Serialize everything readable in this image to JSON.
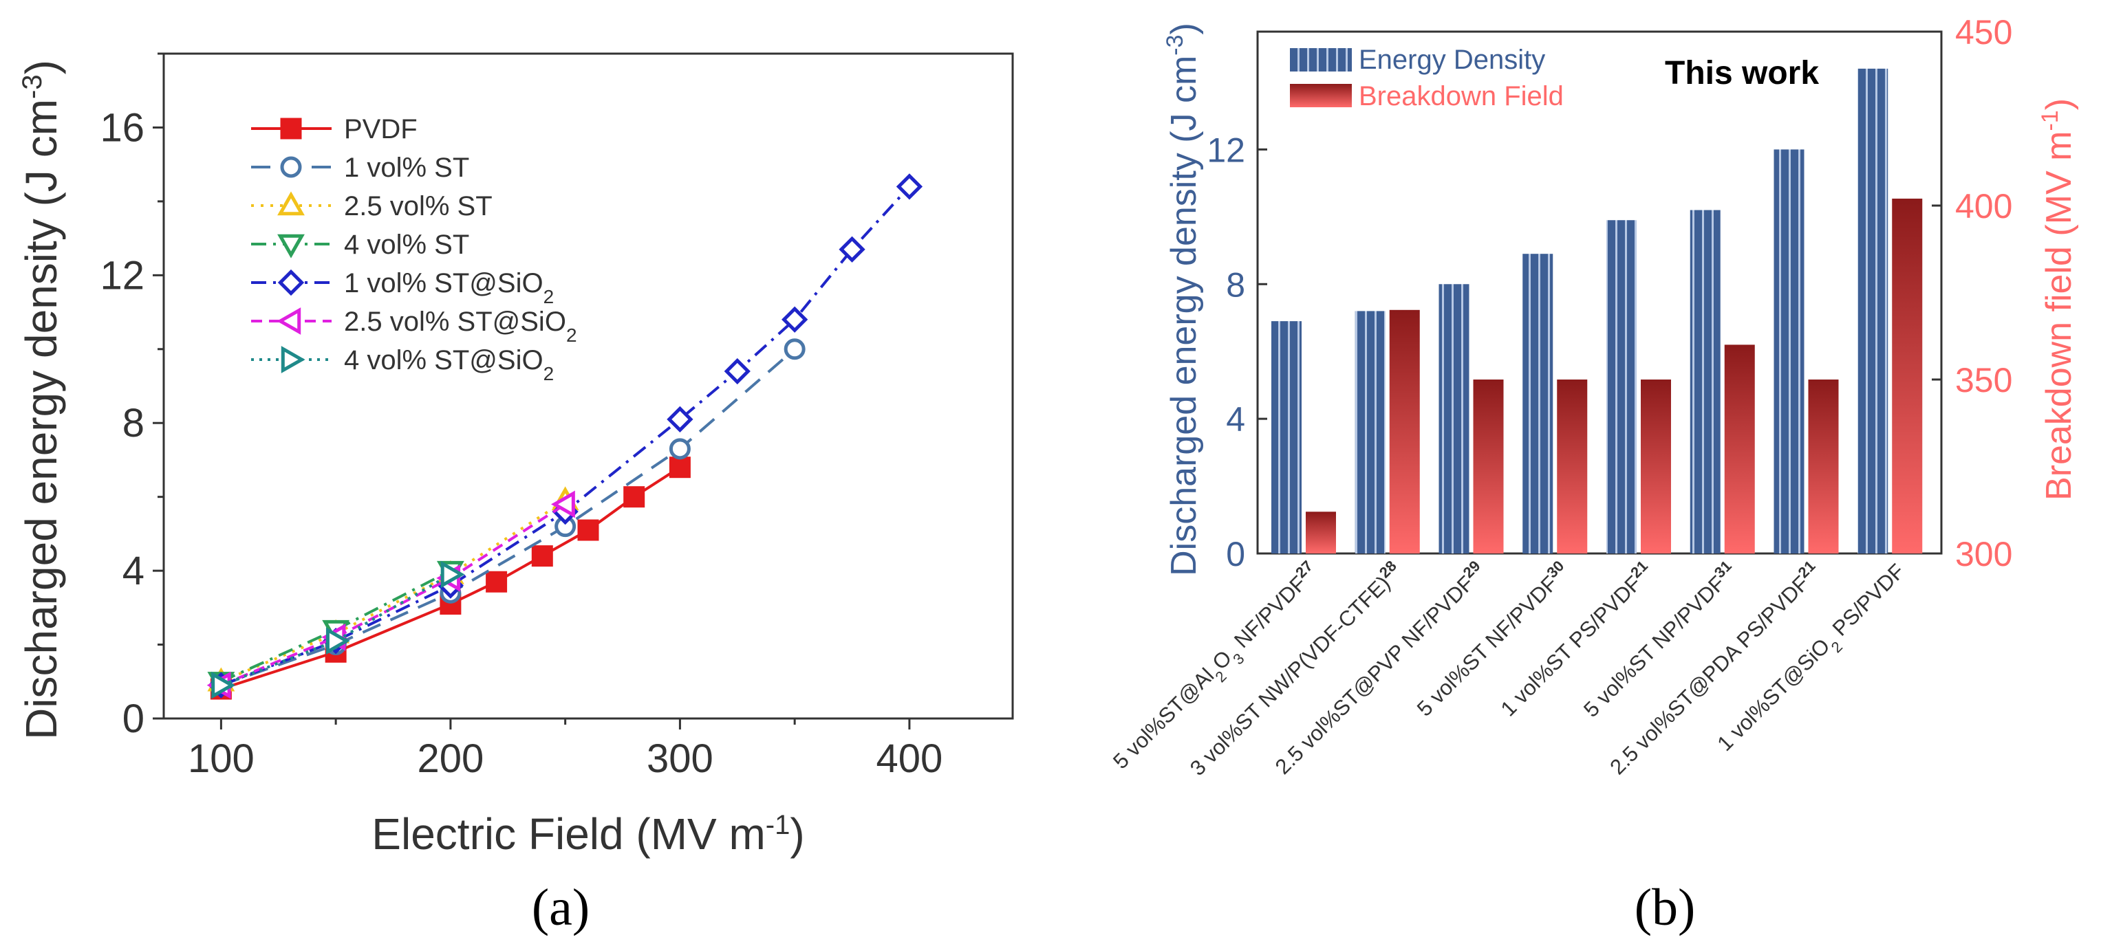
{
  "chart_data": [
    {
      "type": "line",
      "panel_label": "(a)",
      "xlabel": "Electric Field (MV m",
      "xlabel_sup": "-1",
      "xlabel_end": ")",
      "ylabel": "Discharged energy density (J cm",
      "ylabel_sup": "-3",
      "ylabel_end": ")",
      "xlim": [
        75,
        445
      ],
      "ylim": [
        0,
        18
      ],
      "xticks": [
        100,
        200,
        300,
        400
      ],
      "yticks": [
        0,
        4,
        8,
        12,
        16
      ],
      "series": [
        {
          "name": "PVDF",
          "label_main": "PVDF",
          "label_sub": "",
          "color": "#e41a1c",
          "marker": "square",
          "dash": "",
          "x": [
            100,
            150,
            200,
            220,
            240,
            260,
            280,
            300
          ],
          "y": [
            0.8,
            1.8,
            3.1,
            3.7,
            4.4,
            5.1,
            6.0,
            6.8
          ]
        },
        {
          "name": "1 vol% ST",
          "label_main": "1 vol% ST",
          "label_sub": "",
          "color": "#4a77a8",
          "marker": "circle",
          "dash": "28,16",
          "x": [
            100,
            150,
            200,
            250,
            300,
            350
          ],
          "y": [
            0.9,
            2.0,
            3.4,
            5.2,
            7.3,
            10.0
          ]
        },
        {
          "name": "2.5 vol% ST",
          "label_main": "2.5 vol% ST",
          "label_sub": "",
          "color": "#f2c21b",
          "marker": "triangle-up",
          "dash": "4,10",
          "x": [
            100,
            150,
            200,
            250
          ],
          "y": [
            1.0,
            2.3,
            3.9,
            5.9
          ]
        },
        {
          "name": "4 vol% ST",
          "label_main": "4 vol% ST",
          "label_sub": "",
          "color": "#2ca05a",
          "marker": "triangle-down",
          "dash": "22,10,4,10",
          "x": [
            100,
            150,
            200
          ],
          "y": [
            1.0,
            2.4,
            4.0
          ]
        },
        {
          "name": "1 vol% ST@SiO2",
          "label_main": "1 vol% ST@SiO",
          "label_sub": "2",
          "color": "#1f25c8",
          "marker": "diamond",
          "dash": "22,10,4,10",
          "x": [
            100,
            150,
            200,
            250,
            300,
            325,
            350,
            375,
            400
          ],
          "y": [
            0.9,
            2.1,
            3.6,
            5.6,
            8.1,
            9.4,
            10.8,
            12.7,
            14.4
          ]
        },
        {
          "name": "2.5 vol% ST@SiO2",
          "label_main": "2.5 vol% ST@SiO",
          "label_sub": "2",
          "color": "#e020e0",
          "marker": "triangle-left",
          "dash": "16,10",
          "x": [
            100,
            150,
            200,
            250
          ],
          "y": [
            0.9,
            2.2,
            3.8,
            5.8
          ]
        },
        {
          "name": "4 vol% ST@SiO2",
          "label_main": "4 vol% ST@SiO",
          "label_sub": "2",
          "color": "#1f8a8a",
          "marker": "triangle-right",
          "dash": "4,8",
          "x": [
            100,
            150,
            200
          ],
          "y": [
            0.9,
            2.1,
            3.9
          ]
        }
      ]
    },
    {
      "type": "bar",
      "panel_label": "(b)",
      "annotation": "This work",
      "ylabel": "Discharged energy density (J cm",
      "ylabel_sup": "-3",
      "ylabel_end": ")",
      "y2label": "Breakdown field (MV m",
      "y2label_sup": "-1",
      "y2label_end": ")",
      "ylim": [
        0,
        15.5
      ],
      "yticks": [
        0,
        4,
        8,
        12
      ],
      "y2lim": [
        300,
        450
      ],
      "y2ticks": [
        300,
        350,
        400,
        450
      ],
      "categories": [
        {
          "parts": [
            {
              "t": "5 vol%ST@Al"
            },
            {
              "t": "2",
              "s": "sub"
            },
            {
              "t": "O"
            },
            {
              "t": "3",
              "s": "sub"
            },
            {
              "t": " NF/PVDF"
            },
            {
              "t": "27",
              "s": "sup"
            }
          ]
        },
        {
          "parts": [
            {
              "t": "3 vol%ST NW/P(VDF-CTFE)"
            },
            {
              "t": "28",
              "s": "sup"
            }
          ]
        },
        {
          "parts": [
            {
              "t": "2.5 vol%ST@PVP NF/PVDF"
            },
            {
              "t": "29",
              "s": "sup"
            }
          ]
        },
        {
          "parts": [
            {
              "t": "5 vol%ST NF/PVDF"
            },
            {
              "t": "30",
              "s": "sup"
            }
          ]
        },
        {
          "parts": [
            {
              "t": "1 vol%ST PS/PVDF"
            },
            {
              "t": "21",
              "s": "sup"
            }
          ]
        },
        {
          "parts": [
            {
              "t": "5 vol%ST NP/PVDF"
            },
            {
              "t": "31",
              "s": "sup"
            }
          ]
        },
        {
          "parts": [
            {
              "t": "2.5 vol%ST@PDA PS/PVDF"
            },
            {
              "t": "21",
              "s": "sup"
            }
          ]
        },
        {
          "parts": [
            {
              "t": "1 vol%ST@SiO"
            },
            {
              "t": "2",
              "s": "sub"
            },
            {
              "t": " PS/PVDF"
            }
          ]
        }
      ],
      "series": [
        {
          "name": "Energy Density",
          "axis": "left",
          "color": "#3e5f95",
          "values": [
            6.9,
            7.2,
            8.0,
            8.9,
            9.9,
            10.2,
            12.0,
            14.4
          ]
        },
        {
          "name": "Breakdown Field",
          "axis": "right",
          "color_top": "#8b1a1a",
          "color_bottom": "#ff6a6a",
          "values": [
            312,
            370,
            350,
            350,
            350,
            360,
            350,
            402
          ]
        }
      ]
    }
  ]
}
